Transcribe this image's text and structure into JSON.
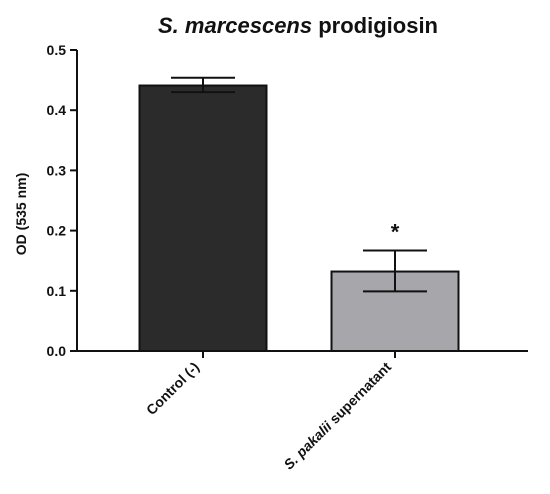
{
  "chart_data": {
    "type": "bar",
    "title": "S. marcescens prodigiosin",
    "title_parts": {
      "italic": "S. marcescens",
      "normal": "prodigiosin"
    },
    "xlabel": "",
    "ylabel": "OD (535 nm)",
    "ylim": [
      0,
      0.5
    ],
    "yticks": [
      "0.0",
      "0.1",
      "0.2",
      "0.3",
      "0.4",
      "0.5"
    ],
    "grid": false,
    "categories": [
      "Control (-)",
      "S. pakalii supernatant"
    ],
    "category_parts": [
      {
        "italic": "",
        "normal": "Control (-)"
      },
      {
        "italic": "S. pakalii",
        "normal": "supernatant"
      }
    ],
    "values": [
      0.441,
      0.132
    ],
    "error_low": [
      0.43,
      0.099
    ],
    "error_high": [
      0.454,
      0.167
    ],
    "annotations": [
      "",
      "*"
    ],
    "bar_colors": [
      "#2b2b2b",
      "#a7a6ab"
    ]
  }
}
